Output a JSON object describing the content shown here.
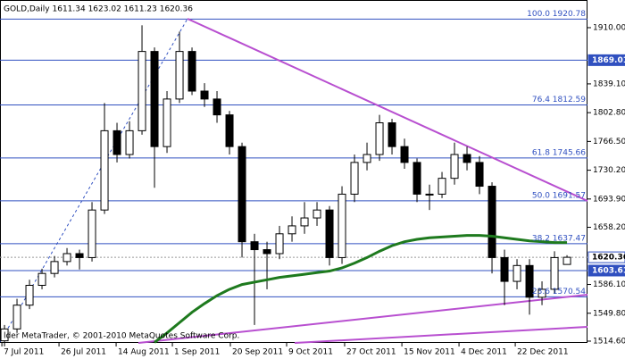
{
  "chart_data": {
    "type": "candlestick",
    "title": "GOLD,Daily  1611.34 1623.02 1611.23 1620.36",
    "footer": "lder MetaTrader, © 2001-2010 MetaQuotes Software Corp.",
    "open": [
      1515,
      1530,
      1560,
      1585,
      1600,
      1615,
      1625,
      1620,
      1680,
      1780,
      1750,
      1780,
      1880,
      1760,
      1820,
      1880,
      1830,
      1820,
      1800,
      1760,
      1640,
      1630,
      1625,
      1650,
      1660,
      1670,
      1680,
      1620,
      1700,
      1740,
      1750,
      1790,
      1760,
      1740,
      1700,
      1700,
      1720,
      1750,
      1740,
      1710,
      1620,
      1590,
      1610,
      1570,
      1580,
      1611.34
    ],
    "high": [
      1535,
      1568,
      1592,
      1606,
      1622,
      1632,
      1630,
      1690,
      1815,
      1790,
      1792,
      1913,
      1885,
      1830,
      1905,
      1885,
      1840,
      1830,
      1805,
      1765,
      1650,
      1640,
      1660,
      1672,
      1690,
      1690,
      1685,
      1710,
      1750,
      1765,
      1800,
      1795,
      1770,
      1745,
      1712,
      1728,
      1765,
      1760,
      1748,
      1715,
      1630,
      1618,
      1618,
      1590,
      1628,
      1623.02
    ],
    "low": [
      1508,
      1525,
      1555,
      1580,
      1595,
      1610,
      1605,
      1615,
      1675,
      1740,
      1745,
      1775,
      1708,
      1752,
      1815,
      1825,
      1810,
      1790,
      1750,
      1620,
      1535,
      1580,
      1618,
      1640,
      1650,
      1660,
      1610,
      1612,
      1690,
      1730,
      1742,
      1750,
      1732,
      1690,
      1680,
      1695,
      1712,
      1730,
      1700,
      1600,
      1560,
      1580,
      1548,
      1560,
      1575,
      1611.23
    ],
    "close": [
      1530,
      1560,
      1585,
      1600,
      1615,
      1625,
      1620,
      1680,
      1780,
      1750,
      1780,
      1880,
      1760,
      1820,
      1880,
      1830,
      1820,
      1800,
      1760,
      1640,
      1630,
      1625,
      1650,
      1660,
      1670,
      1680,
      1620,
      1700,
      1740,
      1750,
      1790,
      1760,
      1740,
      1700,
      1700,
      1720,
      1750,
      1740,
      1710,
      1620,
      1590,
      1610,
      1570,
      1580,
      1620,
      1620.36
    ],
    "ma": {
      "color": "#1e7a1e",
      "values": [
        null,
        null,
        null,
        null,
        null,
        null,
        null,
        null,
        null,
        null,
        null,
        null,
        1513,
        1525,
        1538,
        1551,
        1562,
        1572,
        1580,
        1586,
        1589,
        1592,
        1595,
        1597,
        1599,
        1601,
        1603,
        1607,
        1613,
        1620,
        1628,
        1635,
        1640,
        1643,
        1645,
        1646,
        1647,
        1648,
        1648,
        1647,
        1645,
        1643,
        1641,
        1640,
        1639,
        1639
      ]
    },
    "fib_levels": [
      {
        "value": 1920.78,
        "label": "100.0 1920.78"
      },
      {
        "value": 1812.59,
        "label": "76.4 1812.59"
      },
      {
        "value": 1745.66,
        "label": "61.8 1745.66"
      },
      {
        "value": 1691.57,
        "label": "50.0 1691.57"
      },
      {
        "value": 1637.47,
        "label": "38.2 1637.47"
      },
      {
        "value": 1570.54,
        "label": "23.6 1570.54"
      }
    ],
    "hlines": [
      1869.01,
      1603.61
    ],
    "last": 1620.36,
    "ylim": [
      1512.35,
      1944.9
    ],
    "yticks": [
      {
        "value": 1910,
        "label": "1910.00"
      },
      {
        "value": 1839.1,
        "label": "1839.10"
      },
      {
        "value": 1802.8,
        "label": "1802.80"
      },
      {
        "value": 1766.5,
        "label": "1766.50"
      },
      {
        "value": 1730.2,
        "label": "1730.20"
      },
      {
        "value": 1693.9,
        "label": "1693.90"
      },
      {
        "value": 1658.2,
        "label": "1658.20"
      },
      {
        "value": 1586.1,
        "label": "1586.10"
      },
      {
        "value": 1549.8,
        "label": "1549.80"
      },
      {
        "value": 1514.6,
        "label": "1514.60"
      }
    ],
    "xlim": [
      -0.36,
      46.64
    ],
    "xticks": [
      {
        "value": -0.21,
        "label": "7 Jul 2011"
      },
      {
        "value": 4.36,
        "label": "26 Jul 2011"
      },
      {
        "value": 8.93,
        "label": "14 Aug 2011"
      },
      {
        "value": 13.43,
        "label": "1 Sep 2011"
      },
      {
        "value": 18.07,
        "label": "20 Sep 2011"
      },
      {
        "value": 22.57,
        "label": "9 Oct 2011"
      },
      {
        "value": 27.21,
        "label": "27 Oct 2011"
      },
      {
        "value": 31.79,
        "label": "15 Nov 2011"
      },
      {
        "value": 36.36,
        "label": "4 Dec 2011"
      },
      {
        "value": 40.86,
        "label": "22 Dec 2011"
      }
    ]
  }
}
